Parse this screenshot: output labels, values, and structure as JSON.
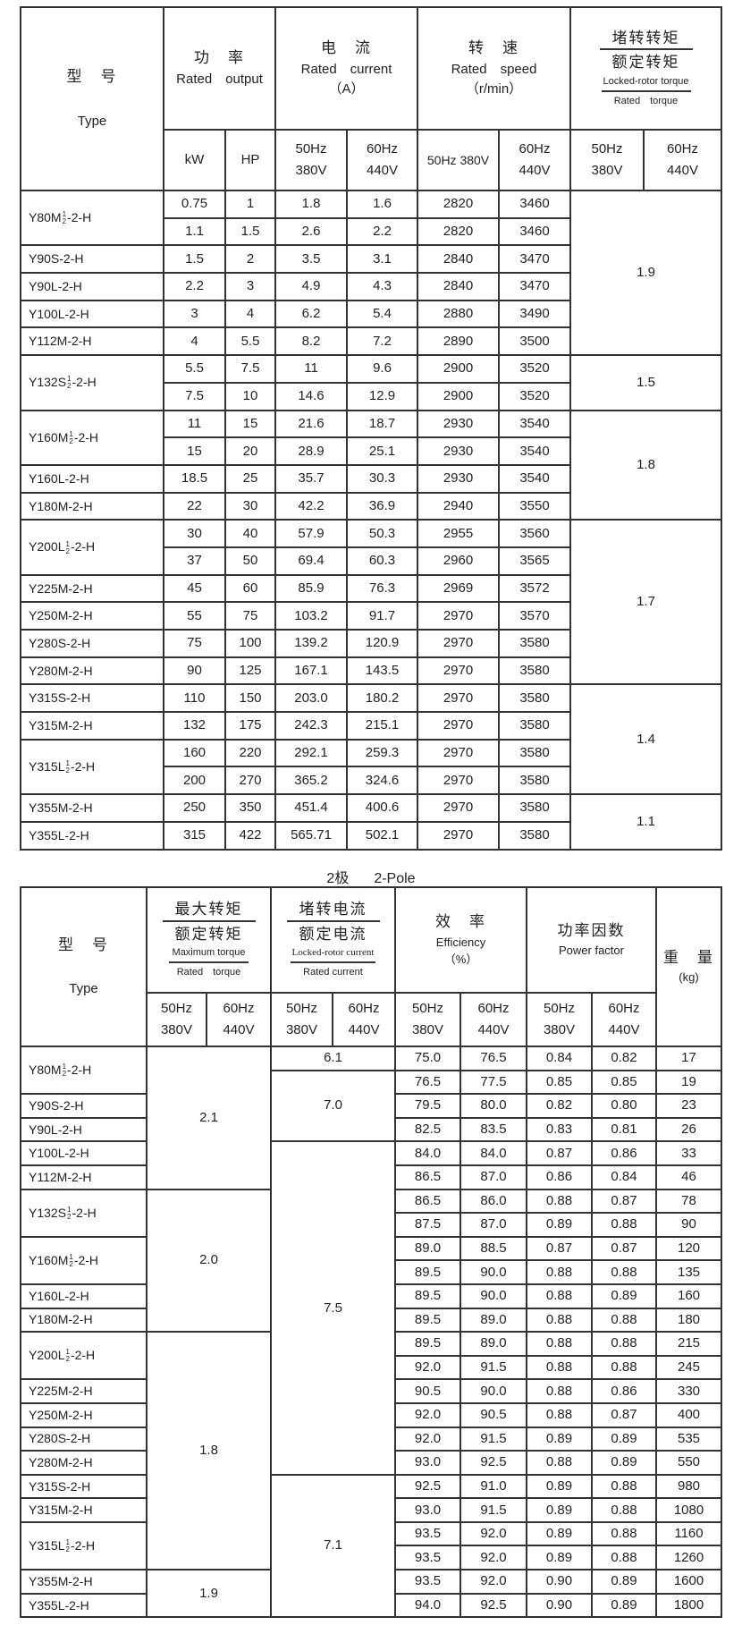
{
  "table1": {
    "headers": {
      "type_zh": "型　号",
      "type_en": "Type",
      "power_zh": "功　率",
      "power_en": "Rated　output",
      "current_zh": "电　流",
      "current_en": "Rated　current",
      "current_unit": "（A）",
      "speed_zh": "转　速",
      "speed_en": "Rated　speed",
      "speed_unit": "（r/min）",
      "torque_zh_num": "堵转转矩",
      "torque_zh_den": "额定转矩",
      "torque_en_num": "Locked-rotor torque",
      "torque_en_den": "Rated　torque",
      "kw": "kW",
      "hp": "HP",
      "hz50": "50Hz",
      "hz60": "60Hz",
      "v380": "380V",
      "v440": "440V",
      "hz50_380": "50Hz 380V"
    },
    "models": [
      {
        "pre": "Y80M",
        "sup": "1",
        "sub": "2",
        "post": "-2-H",
        "rows": [
          [
            "0.75",
            "1",
            "1.8",
            "1.6",
            "2820",
            "3460"
          ],
          [
            "1.1",
            "1.5",
            "2.6",
            "2.2",
            "2820",
            "3460"
          ]
        ]
      },
      {
        "pre": "Y90S-2-H",
        "rows": [
          [
            "1.5",
            "2",
            "3.5",
            "3.1",
            "2840",
            "3470"
          ]
        ]
      },
      {
        "pre": "Y90L-2-H",
        "rows": [
          [
            "2.2",
            "3",
            "4.9",
            "4.3",
            "2840",
            "3470"
          ]
        ]
      },
      {
        "pre": "Y100L-2-H",
        "rows": [
          [
            "3",
            "4",
            "6.2",
            "5.4",
            "2880",
            "3490"
          ]
        ]
      },
      {
        "pre": "Y112M-2-H",
        "rows": [
          [
            "4",
            "5.5",
            "8.2",
            "7.2",
            "2890",
            "3500"
          ]
        ]
      },
      {
        "pre": "Y132S",
        "sup": "1",
        "sub": "2",
        "post": "-2-H",
        "rows": [
          [
            "5.5",
            "7.5",
            "11",
            "9.6",
            "2900",
            "3520"
          ],
          [
            "7.5",
            "10",
            "14.6",
            "12.9",
            "2900",
            "3520"
          ]
        ]
      },
      {
        "pre": "Y160M",
        "sup": "1",
        "sub": "2",
        "post": "-2-H",
        "rows": [
          [
            "11",
            "15",
            "21.6",
            "18.7",
            "2930",
            "3540"
          ],
          [
            "15",
            "20",
            "28.9",
            "25.1",
            "2930",
            "3540"
          ]
        ]
      },
      {
        "pre": "Y160L-2-H",
        "rows": [
          [
            "18.5",
            "25",
            "35.7",
            "30.3",
            "2930",
            "3540"
          ]
        ]
      },
      {
        "pre": "Y180M-2-H",
        "rows": [
          [
            "22",
            "30",
            "42.2",
            "36.9",
            "2940",
            "3550"
          ]
        ]
      },
      {
        "pre": "Y200L",
        "sup": "1",
        "sub": "2",
        "post": "-2-H",
        "rows": [
          [
            "30",
            "40",
            "57.9",
            "50.3",
            "2955",
            "3560"
          ],
          [
            "37",
            "50",
            "69.4",
            "60.3",
            "2960",
            "3565"
          ]
        ]
      },
      {
        "pre": "Y225M-2-H",
        "rows": [
          [
            "45",
            "60",
            "85.9",
            "76.3",
            "2969",
            "3572"
          ]
        ]
      },
      {
        "pre": "Y250M-2-H",
        "rows": [
          [
            "55",
            "75",
            "103.2",
            "91.7",
            "2970",
            "3570"
          ]
        ]
      },
      {
        "pre": "Y280S-2-H",
        "rows": [
          [
            "75",
            "100",
            "139.2",
            "120.9",
            "2970",
            "3580"
          ]
        ]
      },
      {
        "pre": "Y280M-2-H",
        "rows": [
          [
            "90",
            "125",
            "167.1",
            "143.5",
            "2970",
            "3580"
          ]
        ]
      },
      {
        "pre": "Y315S-2-H",
        "rows": [
          [
            "110",
            "150",
            "203.0",
            "180.2",
            "2970",
            "3580"
          ]
        ]
      },
      {
        "pre": "Y315M-2-H",
        "rows": [
          [
            "132",
            "175",
            "242.3",
            "215.1",
            "2970",
            "3580"
          ]
        ]
      },
      {
        "pre": "Y315L",
        "sup": "1",
        "sub": "2",
        "post": "-2-H",
        "rows": [
          [
            "160",
            "220",
            "292.1",
            "259.3",
            "2970",
            "3580"
          ],
          [
            "200",
            "270",
            "365.2",
            "324.6",
            "2970",
            "3580"
          ]
        ]
      },
      {
        "pre": "Y355M-2-H",
        "rows": [
          [
            "250",
            "350",
            "451.4",
            "400.6",
            "2970",
            "3580"
          ]
        ]
      },
      {
        "pre": "Y355L-2-H",
        "rows": [
          [
            "315",
            "422",
            "565.71",
            "502.1",
            "2970",
            "3580"
          ]
        ]
      }
    ],
    "torque_groups": [
      {
        "value": "1.9",
        "span": 6
      },
      {
        "value": "1.5",
        "span": 2
      },
      {
        "value": "1.8",
        "span": 4
      },
      {
        "value": "1.7",
        "span": 6
      },
      {
        "value": "1.4",
        "span": 4
      },
      {
        "value": "1.1",
        "span": 2
      }
    ]
  },
  "caption": {
    "zh": "2极",
    "en": "2-Pole"
  },
  "table2": {
    "headers": {
      "type_zh": "型　号",
      "type_en": "Type",
      "maxt_zh_num": "最大转矩",
      "maxt_zh_den": "额定转矩",
      "maxt_en_num": "Maximum torque",
      "maxt_en_den": "Rated　torque",
      "lc_zh_num": "堵转电流",
      "lc_zh_den": "额定电流",
      "lc_en_num": "Locked-rotor current",
      "lc_en_den": "Rated current",
      "eff_zh": "效　率",
      "eff_en": "Efficiency",
      "eff_unit": "（%）",
      "pf_zh": "功率因数",
      "pf_en": "Power factor",
      "wt_zh": "重　量",
      "wt_unit": "(kg)",
      "hz50": "50Hz",
      "hz60": "60Hz",
      "v380": "380V",
      "v440": "440V"
    },
    "models": [
      {
        "pre": "Y80M",
        "sup": "1",
        "sub": "2",
        "post": "-2-H",
        "span": 2
      },
      {
        "pre": "Y90S-2-H",
        "span": 1
      },
      {
        "pre": "Y90L-2-H",
        "span": 1
      },
      {
        "pre": "Y100L-2-H",
        "span": 1
      },
      {
        "pre": "Y112M-2-H",
        "span": 1
      },
      {
        "pre": "Y132S",
        "sup": "1",
        "sub": "2",
        "post": "-2-H",
        "span": 2
      },
      {
        "pre": "Y160M",
        "sup": "1",
        "sub": "2",
        "post": "-2-H",
        "span": 2
      },
      {
        "pre": "Y160L-2-H",
        "span": 1
      },
      {
        "pre": "Y180M-2-H",
        "span": 1
      },
      {
        "pre": "Y200L",
        "sup": "1",
        "sub": "2",
        "post": "-2-H",
        "span": 2
      },
      {
        "pre": "Y225M-2-H",
        "span": 1
      },
      {
        "pre": "Y250M-2-H",
        "span": 1
      },
      {
        "pre": "Y280S-2-H",
        "span": 1
      },
      {
        "pre": "Y280M-2-H",
        "span": 1
      },
      {
        "pre": "Y315S-2-H",
        "span": 1
      },
      {
        "pre": "Y315M-2-H",
        "span": 1
      },
      {
        "pre": "Y315L",
        "sup": "1",
        "sub": "2",
        "post": "-2-H",
        "span": 2
      },
      {
        "pre": "Y355M-2-H",
        "span": 1
      },
      {
        "pre": "Y355L-2-H",
        "span": 1
      }
    ],
    "max_torque_groups": [
      {
        "value": "2.1",
        "span": 6
      },
      {
        "value": "2.0",
        "span": 6
      },
      {
        "value": "1.8",
        "span": 10
      },
      {
        "value": "1.9",
        "span": 2
      }
    ],
    "locked_current_groups": [
      {
        "value": "6.1",
        "span": 1
      },
      {
        "value": "7.0",
        "span": 3
      },
      {
        "value": "7.5",
        "span": 14
      },
      {
        "value": "7.1",
        "span": 6
      }
    ],
    "rows": [
      [
        "75.0",
        "76.5",
        "0.84",
        "0.82",
        "17"
      ],
      [
        "76.5",
        "77.5",
        "0.85",
        "0.85",
        "19"
      ],
      [
        "79.5",
        "80.0",
        "0.82",
        "0.80",
        "23"
      ],
      [
        "82.5",
        "83.5",
        "0.83",
        "0.81",
        "26"
      ],
      [
        "84.0",
        "84.0",
        "0.87",
        "0.86",
        "33"
      ],
      [
        "86.5",
        "87.0",
        "0.86",
        "0.84",
        "46"
      ],
      [
        "86.5",
        "86.0",
        "0.88",
        "0.87",
        "78"
      ],
      [
        "87.5",
        "87.0",
        "0.89",
        "0.88",
        "90"
      ],
      [
        "89.0",
        "88.5",
        "0.87",
        "0.87",
        "120"
      ],
      [
        "89.5",
        "90.0",
        "0.88",
        "0.88",
        "135"
      ],
      [
        "89.5",
        "90.0",
        "0.88",
        "0.89",
        "160"
      ],
      [
        "89.5",
        "89.0",
        "0.88",
        "0.88",
        "180"
      ],
      [
        "89.5",
        "89.0",
        "0.88",
        "0.88",
        "215"
      ],
      [
        "92.0",
        "91.5",
        "0.88",
        "0.88",
        "245"
      ],
      [
        "90.5",
        "90.0",
        "0.88",
        "0.86",
        "330"
      ],
      [
        "92.0",
        "90.5",
        "0.88",
        "0.87",
        "400"
      ],
      [
        "92.0",
        "91.5",
        "0.89",
        "0.89",
        "535"
      ],
      [
        "93.0",
        "92.5",
        "0.88",
        "0.89",
        "550"
      ],
      [
        "92.5",
        "91.0",
        "0.89",
        "0.88",
        "980"
      ],
      [
        "93.0",
        "91.5",
        "0.89",
        "0.88",
        "1080"
      ],
      [
        "93.5",
        "92.0",
        "0.89",
        "0.88",
        "1160"
      ],
      [
        "93.5",
        "92.0",
        "0.89",
        "0.88",
        "1260"
      ],
      [
        "93.5",
        "92.0",
        "0.90",
        "0.89",
        "1600"
      ],
      [
        "94.0",
        "92.5",
        "0.90",
        "0.89",
        "1800"
      ]
    ]
  }
}
